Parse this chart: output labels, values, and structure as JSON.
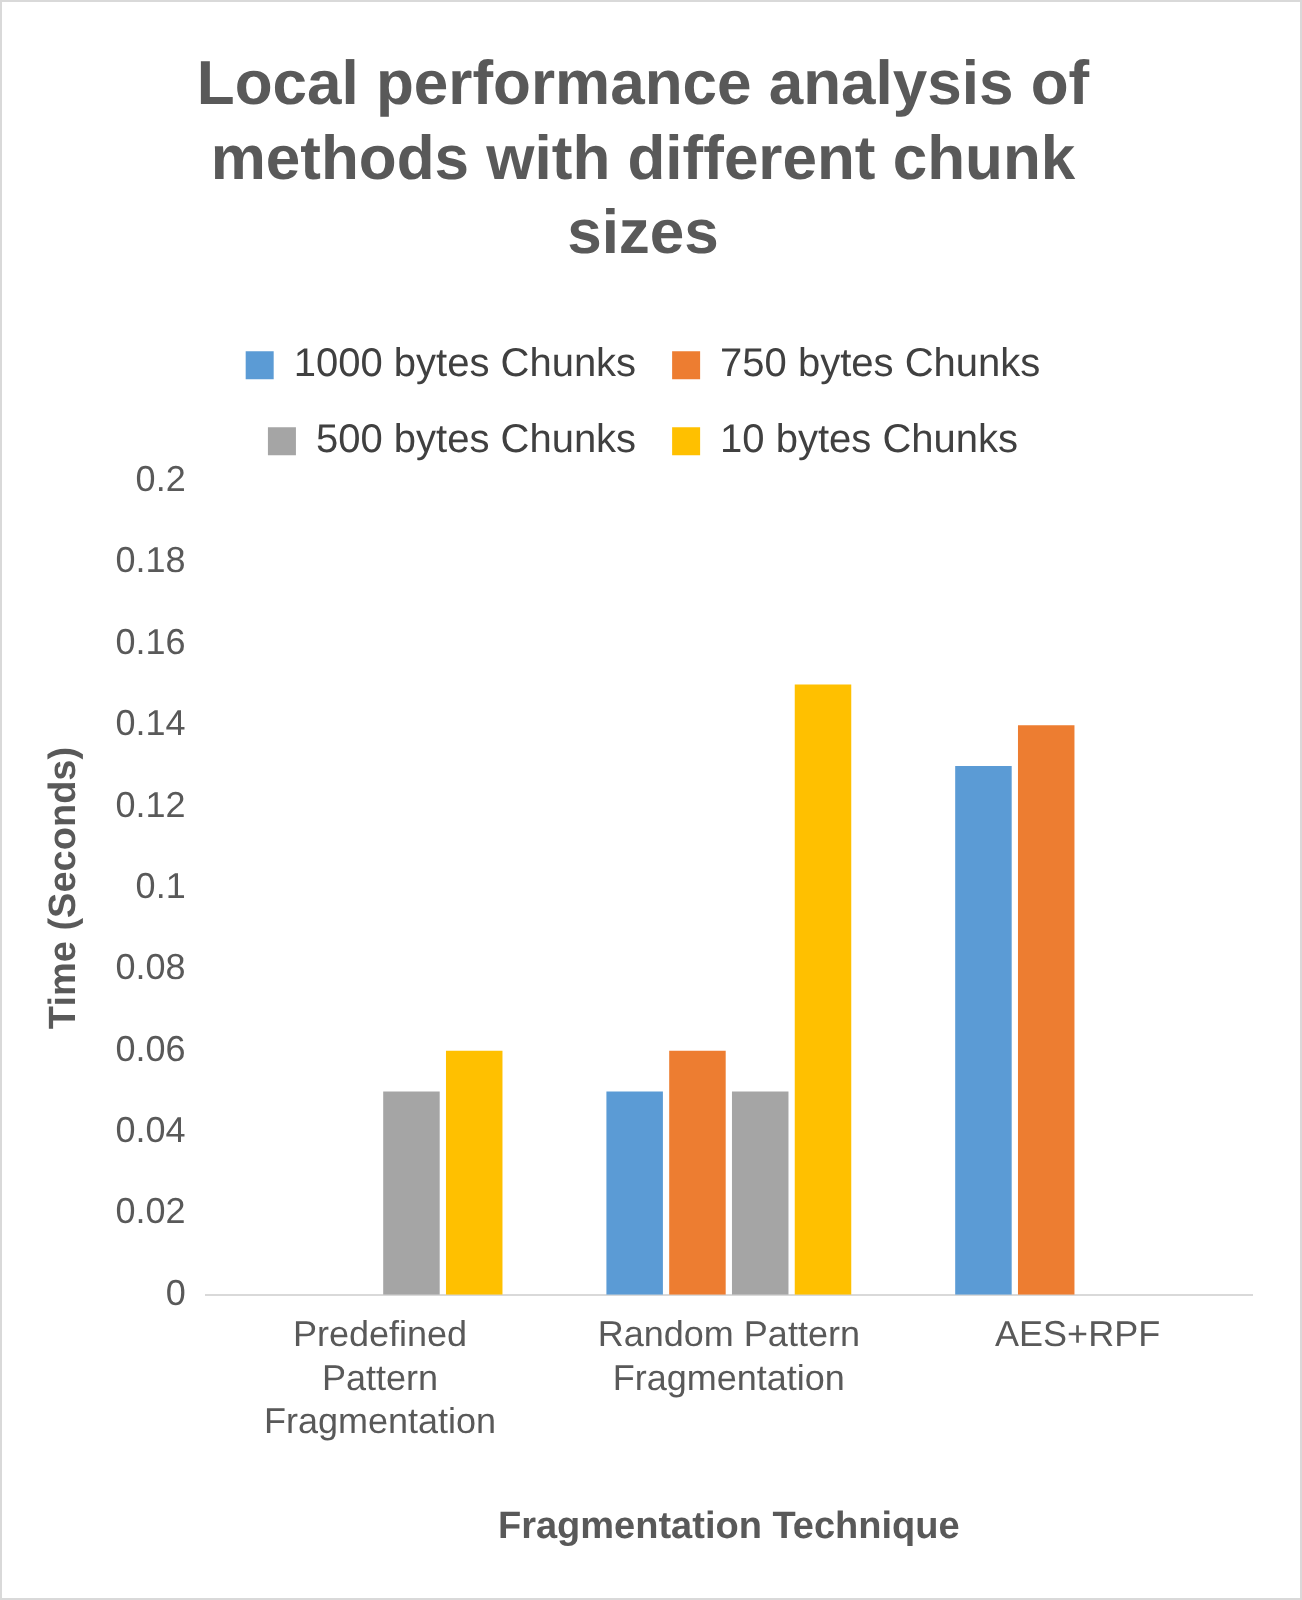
{
  "chart_data": {
    "type": "bar",
    "title": "Local performance analysis of methods with different chunk sizes",
    "xlabel": "Fragmentation Technique",
    "ylabel": "Time (Seconds)",
    "categories": [
      "Predefined Pattern Fragmentation",
      "Random Pattern Fragmentation",
      "AES+RPF"
    ],
    "series": [
      {
        "name": "1000 bytes Chunks",
        "color": "#5b9bd5",
        "values": [
          null,
          0.05,
          0.13
        ]
      },
      {
        "name": "750 bytes Chunks",
        "color": "#ed7d31",
        "values": [
          null,
          0.06,
          0.14
        ]
      },
      {
        "name": "500 bytes Chunks",
        "color": "#a5a5a5",
        "values": [
          0.05,
          0.05,
          null
        ]
      },
      {
        "name": "10 bytes Chunks",
        "color": "#ffc000",
        "values": [
          0.06,
          0.15,
          null
        ]
      }
    ],
    "ylim": [
      0,
      0.2
    ],
    "yticks": [
      0,
      0.02,
      0.04,
      0.06,
      0.08,
      0.1,
      0.12,
      0.14,
      0.16,
      0.18,
      0.2
    ],
    "grid": false,
    "legend": "top"
  }
}
